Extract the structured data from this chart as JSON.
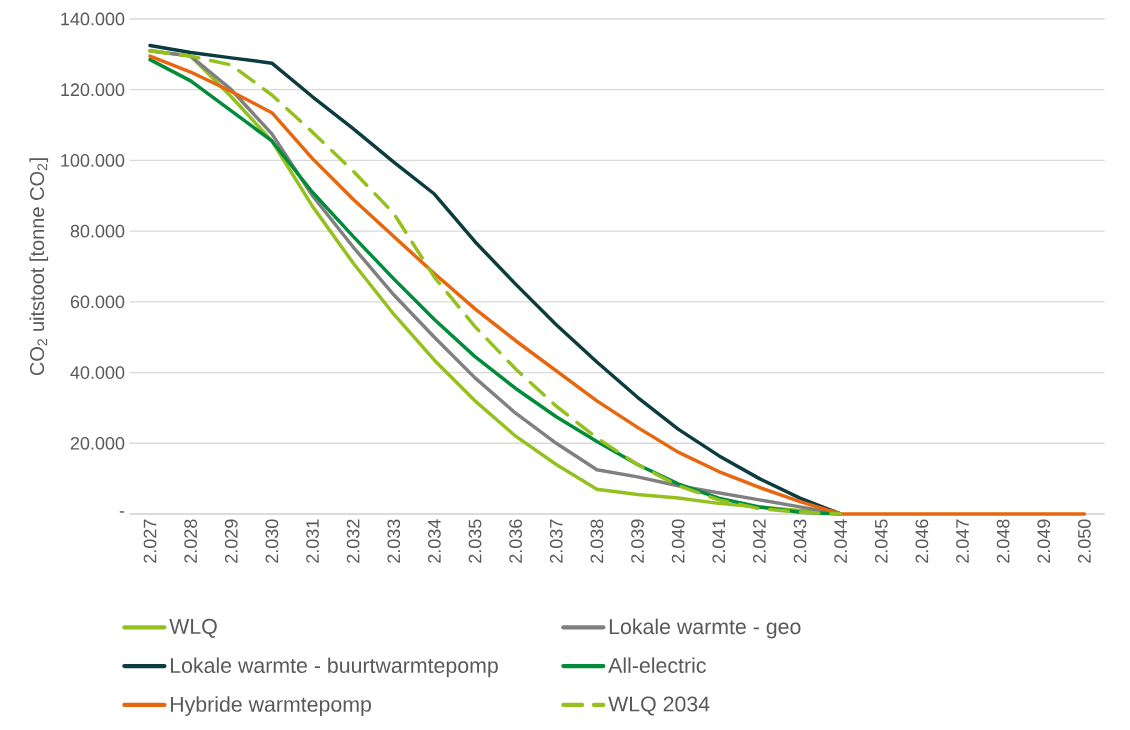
{
  "chart_data": {
    "type": "line",
    "ylabel": "CO$_{2}$ uitstoot [tonne CO$_{2}$]",
    "categories": [
      "2.027",
      "2.028",
      "2.029",
      "2.030",
      "2.031",
      "2.032",
      "2.033",
      "2.034",
      "2.035",
      "2.036",
      "2.037",
      "2.038",
      "2.039",
      "2.040",
      "2.041",
      "2.042",
      "2.043",
      "2.044",
      "2.045",
      "2.046",
      "2.047",
      "2.048",
      "2.049",
      "2.050"
    ],
    "series": [
      {
        "name": "WLQ",
        "color": "#95c11f",
        "values": [
          131000,
          129500,
          118000,
          105500,
          87000,
          71000,
          56500,
          43500,
          32000,
          22000,
          14000,
          7000,
          5500,
          4500,
          3000,
          2000,
          1000,
          0,
          null,
          null,
          null,
          null,
          null,
          null
        ]
      },
      {
        "name": "Lokale warmte - geo",
        "color": "#808080",
        "values": [
          131000,
          129500,
          120000,
          107500,
          90000,
          75500,
          62000,
          50000,
          38500,
          28500,
          20000,
          12500,
          10500,
          8000,
          6000,
          4000,
          2000,
          0,
          null,
          null,
          null,
          null,
          null,
          null
        ]
      },
      {
        "name": "Lokale warmte - buurtwarmtepomp",
        "color": "#0b3c3f",
        "values": [
          132500,
          130500,
          129000,
          127500,
          118000,
          109000,
          99500,
          90500,
          77000,
          65000,
          53500,
          43000,
          33000,
          24000,
          16500,
          10000,
          4500,
          0,
          null,
          null,
          null,
          null,
          null,
          null
        ]
      },
      {
        "name": "All-electric",
        "color": "#008c3a",
        "values": [
          128500,
          122500,
          114000,
          105500,
          91000,
          78500,
          66500,
          55000,
          44500,
          35500,
          27500,
          20500,
          14000,
          8500,
          4500,
          2000,
          500,
          0,
          null,
          null,
          null,
          null,
          null,
          null
        ]
      },
      {
        "name": "Hybride warmtepomp",
        "color": "#e8660d",
        "values": [
          129500,
          125000,
          119500,
          113500,
          100500,
          89000,
          78500,
          68000,
          58000,
          49000,
          40500,
          32000,
          24500,
          17500,
          12000,
          7500,
          3500,
          0,
          0,
          0,
          0,
          0,
          0,
          0
        ]
      },
      {
        "name": "WLQ 2034",
        "color": "#95c11f",
        "line_style": "dashed",
        "values": [
          131000,
          129500,
          127000,
          118500,
          108000,
          97000,
          85000,
          67000,
          53000,
          41000,
          30500,
          21500,
          14000,
          8000,
          4000,
          1500,
          500,
          0,
          null,
          null,
          null,
          null,
          null,
          null
        ]
      }
    ],
    "ylim": [
      0,
      140000
    ],
    "yticks": [
      {
        "value": 0,
        "label": "-"
      },
      {
        "value": 20000,
        "label": "20.000"
      },
      {
        "value": 40000,
        "label": "40.000"
      },
      {
        "value": 60000,
        "label": "60.000"
      },
      {
        "value": 80000,
        "label": "80.000"
      },
      {
        "value": 100000,
        "label": "100.000"
      },
      {
        "value": 120000,
        "label": "120.000"
      },
      {
        "value": 140000,
        "label": "140.000"
      }
    ],
    "grid": "y",
    "legend": "bottom",
    "marker": "none",
    "line_style": "solid"
  }
}
